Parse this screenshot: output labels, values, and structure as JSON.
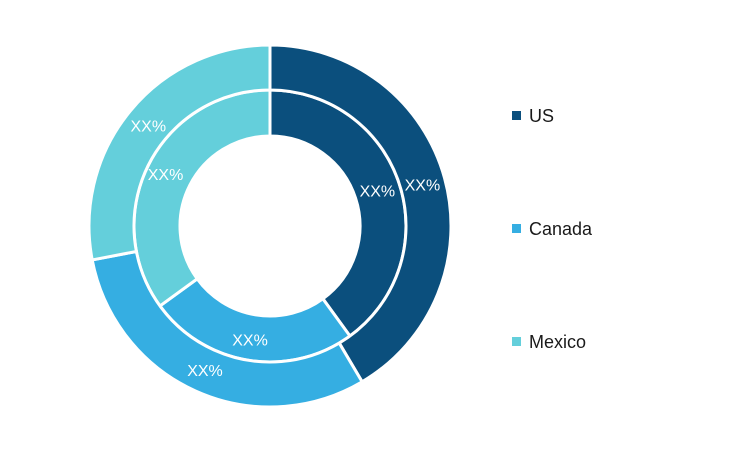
{
  "chart_data": {
    "type": "pie",
    "variant": "double-donut",
    "legend_position": "right",
    "categories": [
      "US",
      "Canada",
      "Mexico"
    ],
    "colors": [
      "#0b4f7d",
      "#35aee2",
      "#64cfdb"
    ],
    "series": [
      {
        "values": [
          0.4,
          0.25,
          0.35
        ],
        "labels": [
          "XX%",
          "XX%",
          "XX%"
        ]
      },
      {
        "values": [
          0.415,
          0.305,
          0.28
        ],
        "labels": [
          "XX%",
          "XX%",
          "XX%"
        ]
      }
    ]
  },
  "legend": {
    "items": [
      {
        "label": "US",
        "color": "#0b4f7d"
      },
      {
        "label": "Canada",
        "color": "#35aee2"
      },
      {
        "label": "Mexico",
        "color": "#64cfdb"
      }
    ]
  }
}
